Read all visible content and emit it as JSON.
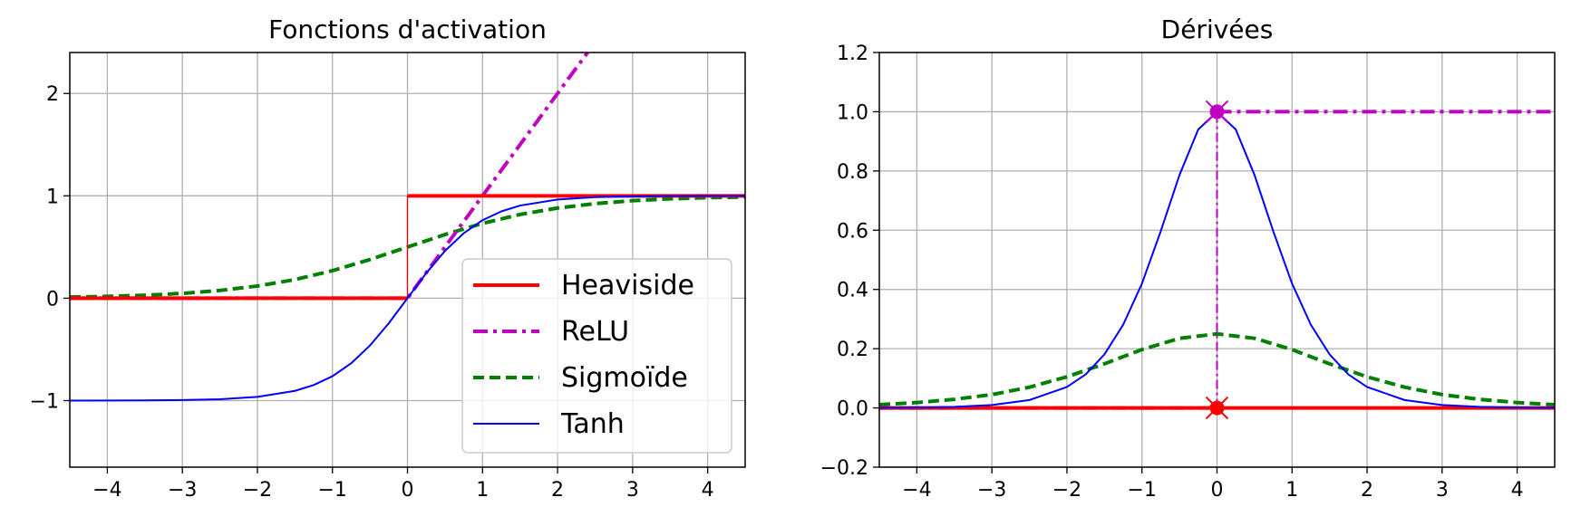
{
  "chart_data": [
    {
      "type": "line",
      "title": "Fonctions d'activation",
      "xlabel": "",
      "ylabel": "",
      "xlim": [
        -4.5,
        4.5
      ],
      "ylim": [
        -1.65,
        2.4
      ],
      "xticks": [
        -4,
        -3,
        -2,
        -1,
        0,
        1,
        2,
        3,
        4
      ],
      "xtick_labels": [
        "−4",
        "−3",
        "−2",
        "−1",
        "0",
        "1",
        "2",
        "3",
        "4"
      ],
      "yticks": [
        -1,
        0,
        1,
        2
      ],
      "ytick_labels": [
        "−1",
        "0",
        "1",
        "2"
      ],
      "grid": true,
      "legend": "lower-right",
      "series": [
        {
          "name": "Heaviside",
          "color": "#ff0000",
          "style": "solid",
          "width": "thick",
          "x": [
            -4.5,
            0,
            0,
            4.5
          ],
          "y": [
            0,
            0,
            1,
            1
          ]
        },
        {
          "name": "ReLU",
          "color": "#bf00bf",
          "style": "dashdot",
          "width": "thick",
          "x": [
            -4.5,
            0,
            4.5
          ],
          "y": [
            0,
            0,
            4.5
          ]
        },
        {
          "name": "Sigmoïde",
          "color": "#008000",
          "style": "dashed",
          "width": "thick",
          "x": [
            -4.5,
            -4,
            -3.5,
            -3,
            -2.5,
            -2,
            -1.5,
            -1,
            -0.5,
            0,
            0.5,
            1,
            1.5,
            2,
            2.5,
            3,
            3.5,
            4,
            4.5
          ],
          "y": [
            0.011,
            0.018,
            0.029,
            0.047,
            0.076,
            0.119,
            0.182,
            0.269,
            0.378,
            0.5,
            0.622,
            0.731,
            0.818,
            0.881,
            0.924,
            0.953,
            0.971,
            0.982,
            0.989
          ]
        },
        {
          "name": "Tanh",
          "color": "#0000ff",
          "style": "solid",
          "width": "thin",
          "x": [
            -4.5,
            -4,
            -3.5,
            -3,
            -2.5,
            -2,
            -1.5,
            -1.25,
            -1,
            -0.75,
            -0.5,
            -0.25,
            0,
            0.25,
            0.5,
            0.75,
            1,
            1.25,
            1.5,
            2,
            2.5,
            3,
            3.5,
            4,
            4.5
          ],
          "y": [
            -1.0,
            -0.999,
            -0.998,
            -0.995,
            -0.987,
            -0.964,
            -0.905,
            -0.848,
            -0.762,
            -0.635,
            -0.462,
            -0.245,
            0,
            0.245,
            0.462,
            0.635,
            0.762,
            0.848,
            0.905,
            0.964,
            0.987,
            0.995,
            0.998,
            0.999,
            1.0
          ]
        }
      ]
    },
    {
      "type": "line",
      "title": "Dérivées",
      "xlabel": "",
      "ylabel": "",
      "xlim": [
        -4.5,
        4.5
      ],
      "ylim": [
        -0.2,
        1.2
      ],
      "xticks": [
        -4,
        -3,
        -2,
        -1,
        0,
        1,
        2,
        3,
        4
      ],
      "xtick_labels": [
        "−4",
        "−3",
        "−2",
        "−1",
        "0",
        "1",
        "2",
        "3",
        "4"
      ],
      "yticks": [
        -0.2,
        0.0,
        0.2,
        0.4,
        0.6,
        0.8,
        1.0,
        1.2
      ],
      "ytick_labels": [
        "−0.2",
        "0.0",
        "0.2",
        "0.4",
        "0.6",
        "0.8",
        "1.0",
        "1.2"
      ],
      "grid": true,
      "series": [
        {
          "name": "Heaviside",
          "color": "#ff0000",
          "style": "solid",
          "width": "thick",
          "x": [
            -4.5,
            4.5
          ],
          "y": [
            0,
            0
          ]
        },
        {
          "name": "ReLU",
          "color": "#bf00bf",
          "style": "dashdot",
          "width": "thick",
          "x": [
            -4.5,
            0,
            0,
            4.5
          ],
          "y": [
            0,
            0,
            1,
            1
          ]
        },
        {
          "name": "Sigmoïde",
          "color": "#008000",
          "style": "dashed",
          "width": "thick",
          "x": [
            -4.5,
            -4,
            -3.5,
            -3,
            -2.5,
            -2,
            -1.5,
            -1,
            -0.5,
            0,
            0.5,
            1,
            1.5,
            2,
            2.5,
            3,
            3.5,
            4,
            4.5
          ],
          "y": [
            0.011,
            0.018,
            0.029,
            0.045,
            0.07,
            0.105,
            0.149,
            0.197,
            0.235,
            0.25,
            0.235,
            0.197,
            0.149,
            0.105,
            0.07,
            0.045,
            0.029,
            0.018,
            0.011
          ]
        },
        {
          "name": "Tanh",
          "color": "#0000ff",
          "style": "solid",
          "width": "thin",
          "x": [
            -4.5,
            -4,
            -3.5,
            -3,
            -2.5,
            -2,
            -1.75,
            -1.5,
            -1.25,
            -1,
            -0.75,
            -0.5,
            -0.25,
            0,
            0.25,
            0.5,
            0.75,
            1,
            1.25,
            1.5,
            1.75,
            2,
            2.5,
            3,
            3.5,
            4,
            4.5
          ],
          "y": [
            0.0005,
            0.0013,
            0.0036,
            0.0099,
            0.0266,
            0.0707,
            0.1132,
            0.1807,
            0.2811,
            0.42,
            0.5966,
            0.7864,
            0.9401,
            1.0,
            0.9401,
            0.7864,
            0.5966,
            0.42,
            0.2811,
            0.1807,
            0.1132,
            0.0707,
            0.0266,
            0.0099,
            0.0036,
            0.0013,
            0.0005
          ]
        }
      ],
      "markers": [
        {
          "x": 0,
          "y": 1,
          "color": "#bf00bf",
          "shapes": [
            "circle",
            "x"
          ]
        },
        {
          "x": 0,
          "y": 0,
          "color": "#ff0000",
          "shapes": [
            "circle",
            "x"
          ]
        }
      ]
    }
  ]
}
